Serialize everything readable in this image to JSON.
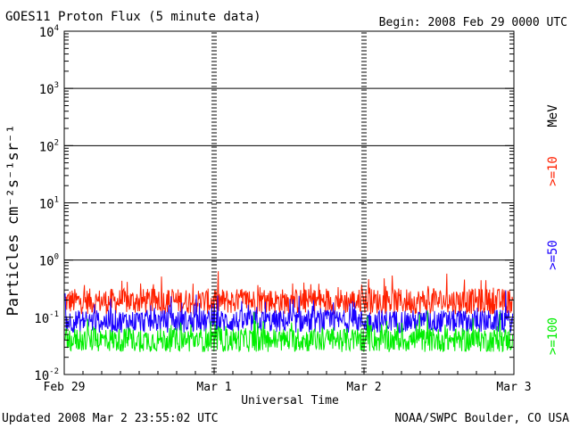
{
  "chart_data": {
    "type": "line",
    "title": "GOES11 Proton Flux (5 minute data)",
    "begin": "Begin: 2008 Feb 29 0000 UTC",
    "xlabel": "Universal Time",
    "ylabel": "Particles cm⁻²s⁻¹sr⁻¹",
    "xlim": [
      0,
      3
    ],
    "x_ticks": [
      "Feb 29",
      "Mar 1",
      "Mar 2",
      "Mar 3"
    ],
    "yscale": "log",
    "ylim": [
      0.01,
      10000
    ],
    "y_ticks": [
      {
        "base": "10",
        "exp": "4"
      },
      {
        "base": "10",
        "exp": "3"
      },
      {
        "base": "10",
        "exp": "2"
      },
      {
        "base": "10",
        "exp": "1"
      },
      {
        "base": "10",
        "exp": "0"
      },
      {
        "base": "10",
        "exp": "-1"
      },
      {
        "base": "10",
        "exp": "-2"
      }
    ],
    "y_tick_values": [
      10000,
      1000,
      100,
      10,
      1,
      0.1,
      0.01
    ],
    "reference_lines": [
      {
        "value": 1000,
        "style": "solid"
      },
      {
        "value": 100,
        "style": "solid"
      },
      {
        "value": 10,
        "style": "dashed"
      },
      {
        "value": 1,
        "style": "solid"
      }
    ],
    "series": [
      {
        "name": ">=10",
        "color": "#ff2000",
        "baseline": 0.19,
        "spread": 0.45
      },
      {
        "name": ">=50",
        "color": "#1a00ff",
        "baseline": 0.085,
        "spread": 0.4
      },
      {
        "name": ">=100",
        "color": "#00ee00",
        "baseline": 0.04,
        "spread": 0.42
      }
    ],
    "units": "MeV",
    "grid": false
  },
  "footer": {
    "updated": "Updated 2008 Mar  2 23:55:02 UTC",
    "source": "NOAA/SWPC Boulder, CO USA"
  }
}
